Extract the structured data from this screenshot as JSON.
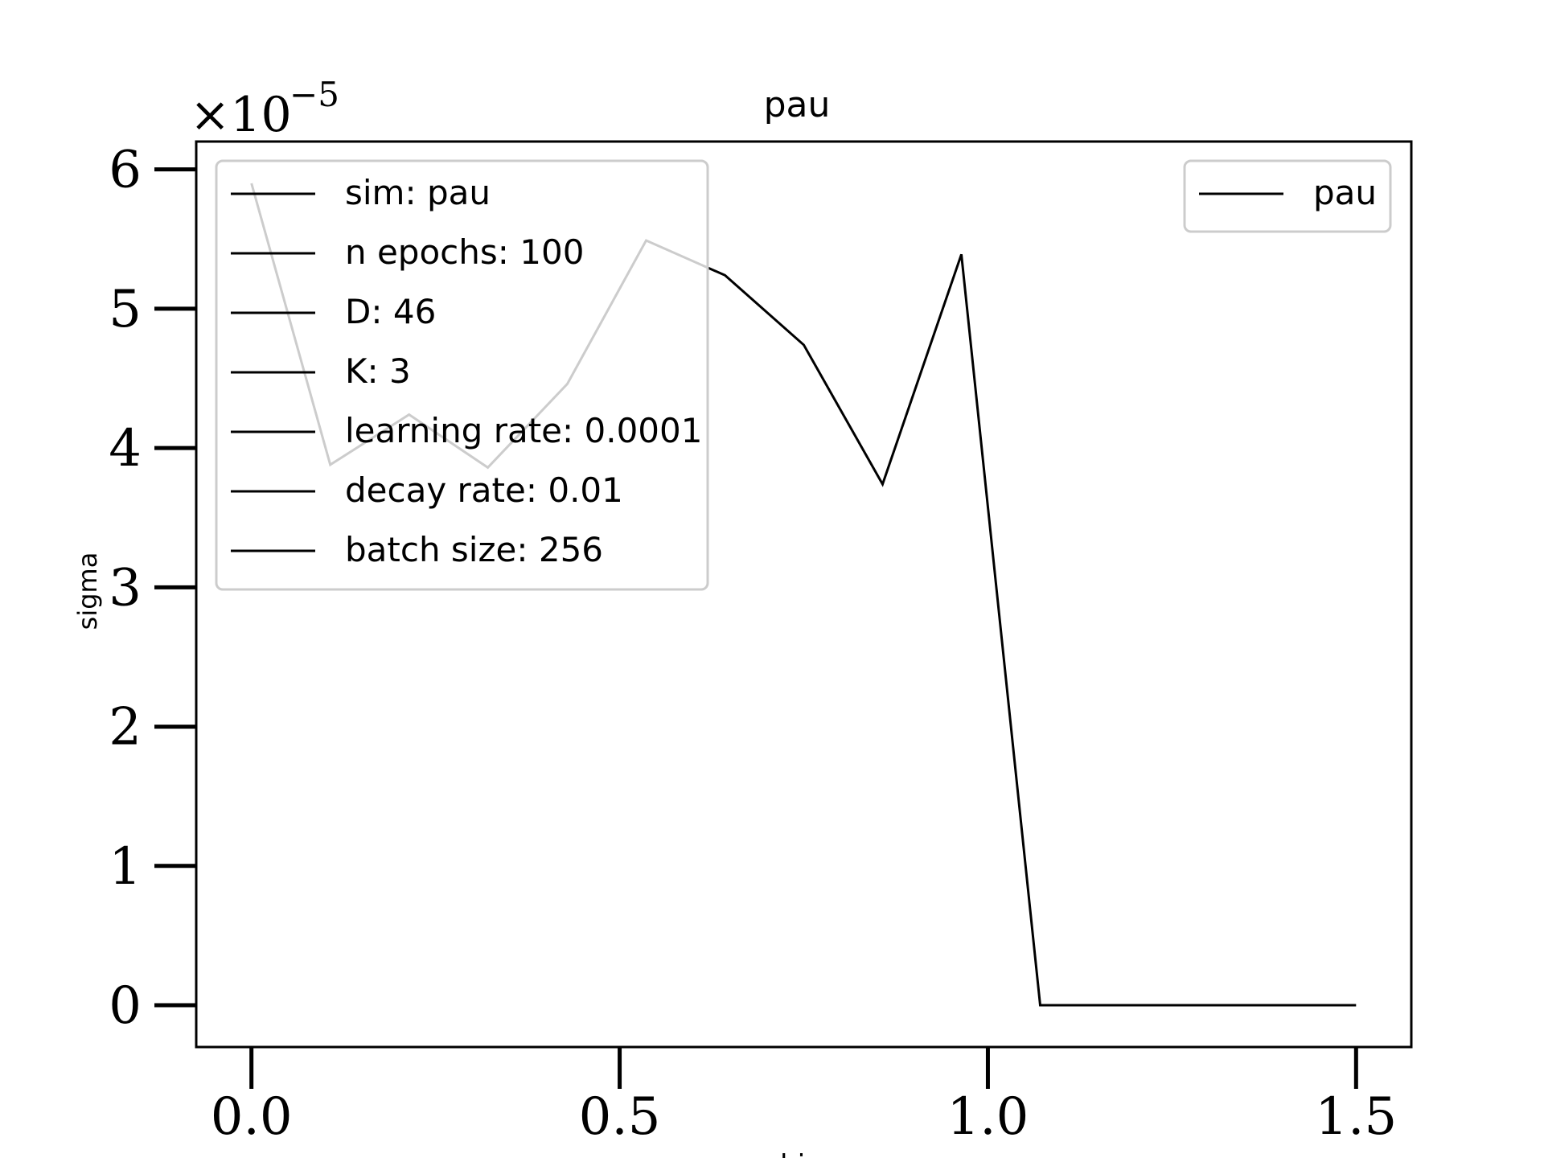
{
  "chart_data": {
    "type": "line",
    "title": "pau",
    "xlabel": "z bins",
    "ylabel": "sigma",
    "y_multiplier": "×10",
    "y_exponent": "−5",
    "xlim": [
      -0.075,
      1.575
    ],
    "ylim": [
      -0.3,
      6.2
    ],
    "x_ticks": [
      "0.0",
      "0.5",
      "1.0",
      "1.5"
    ],
    "x_tick_values": [
      0.0,
      0.5,
      1.0,
      1.5
    ],
    "y_ticks": [
      "0",
      "1",
      "2",
      "3",
      "4",
      "5",
      "6"
    ],
    "y_tick_values": [
      0,
      1,
      2,
      3,
      4,
      5,
      6
    ],
    "grid": false,
    "series": [
      {
        "name": "pau",
        "color": "#000000",
        "x": [
          0.0,
          0.107,
          0.214,
          0.321,
          0.429,
          0.536,
          0.643,
          0.75,
          0.857,
          0.964,
          1.071,
          1.179,
          1.286,
          1.393,
          1.5
        ],
        "y": [
          5.9,
          3.88,
          4.24,
          3.86,
          4.46,
          5.49,
          5.24,
          4.74,
          3.74,
          5.39,
          0.0,
          0.0,
          0.0,
          0.0,
          0.0
        ]
      }
    ],
    "legends": [
      {
        "placement": "top-left",
        "entries": [
          "sim:  pau",
          "n epochs:  100",
          "D:  46",
          "K:  3",
          "learning rate:  0.0001",
          "decay rate:  0.01",
          "batch size:  256"
        ]
      },
      {
        "placement": "top-right",
        "entries": [
          "pau"
        ]
      }
    ]
  }
}
